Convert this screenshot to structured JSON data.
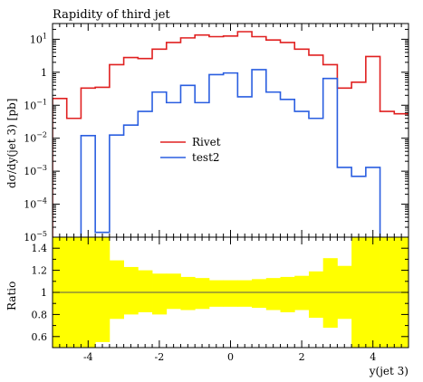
{
  "chart_data": {
    "type": "line",
    "title": "Rapidity of third jet",
    "xlabel": "y(jet 3)",
    "ylabel": "dσ/dy(jet 3) [pb]",
    "xlim": [
      -5,
      5
    ],
    "ylim": [
      1e-05,
      30
    ],
    "yscale": "log",
    "x_ticks": [
      -4,
      -2,
      0,
      2,
      4
    ],
    "x_tick_labels": [
      "-4",
      "-2",
      "0",
      "2",
      "4"
    ],
    "y_ticks": [
      1e-05,
      0.0001,
      0.001,
      0.01,
      0.1,
      1,
      10
    ],
    "y_tick_labels": [
      {
        "base": "10",
        "exp": "−5"
      },
      {
        "base": "10",
        "exp": "−4"
      },
      {
        "base": "10",
        "exp": "−3"
      },
      {
        "base": "10",
        "exp": "−2"
      },
      {
        "base": "10",
        "exp": "−1"
      },
      {
        "base": "1",
        "exp": ""
      },
      {
        "base": "10",
        "exp": "1"
      }
    ],
    "legend_position": "center",
    "bin_edges": [
      -5.0,
      -4.6,
      -4.2,
      -3.8,
      -3.4,
      -3.0,
      -2.6,
      -2.2,
      -1.8,
      -1.4,
      -1.0,
      -0.6,
      -0.2,
      0.2,
      0.6,
      1.0,
      1.4,
      1.8,
      2.2,
      2.6,
      3.0,
      3.4,
      3.8,
      4.2,
      4.6,
      5.0
    ],
    "series": [
      {
        "name": "Rivet",
        "color": "#e02020",
        "values": [
          0.16,
          0.04,
          0.33,
          0.35,
          1.7,
          2.8,
          2.6,
          5.0,
          8.0,
          11.0,
          13.5,
          12.0,
          12.5,
          17.0,
          12.0,
          9.5,
          8.0,
          5.0,
          3.3,
          1.7,
          0.33,
          0.5,
          3.0,
          0.065,
          0.055
        ]
      },
      {
        "name": "test2",
        "color": "#2a5ee0",
        "values": [
          null,
          null,
          0.012,
          1.4e-05,
          0.0125,
          0.025,
          0.065,
          0.25,
          0.12,
          0.4,
          0.12,
          0.85,
          0.95,
          0.18,
          1.2,
          0.25,
          0.15,
          0.065,
          0.04,
          0.65,
          0.0013,
          0.0007,
          0.0013,
          null,
          null
        ]
      }
    ],
    "ratio": {
      "ylabel": "Ratio",
      "ylim": [
        0.5,
        1.5
      ],
      "y_ticks": [
        0.6,
        0.8,
        1.0,
        1.2,
        1.4
      ],
      "y_tick_labels": [
        "0.6",
        "0.8",
        "1",
        "1.2",
        "1.4"
      ],
      "reference": 1.0,
      "band_color": "#ffff00",
      "band_upper": [
        1.5,
        1.5,
        1.5,
        1.5,
        1.29,
        1.23,
        1.2,
        1.17,
        1.17,
        1.14,
        1.13,
        1.11,
        1.11,
        1.11,
        1.12,
        1.13,
        1.14,
        1.15,
        1.19,
        1.31,
        1.24,
        1.5,
        1.5,
        1.5,
        1.5
      ],
      "band_lower": [
        0.5,
        0.5,
        0.5,
        0.55,
        0.76,
        0.8,
        0.82,
        0.8,
        0.85,
        0.84,
        0.85,
        0.87,
        0.87,
        0.87,
        0.86,
        0.84,
        0.82,
        0.84,
        0.77,
        0.68,
        0.76,
        0.5,
        0.5,
        0.5,
        0.5
      ]
    }
  }
}
